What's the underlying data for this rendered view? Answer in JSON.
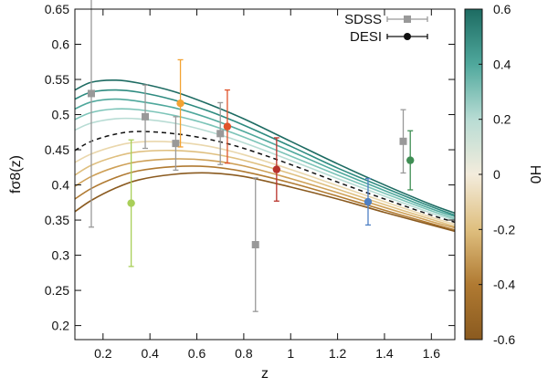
{
  "chart_data": {
    "type": "line",
    "xlabel": "z",
    "ylabel": "fσ8(z)",
    "xlim": [
      0.08,
      1.7
    ],
    "ylim": [
      0.18,
      0.65
    ],
    "xticks": [
      0.2,
      0.4,
      0.6,
      0.8,
      1,
      1.2,
      1.4,
      1.6
    ],
    "xtick_labels": [
      "0.2",
      "0.4",
      "0.6",
      "0.8",
      "1",
      "1.2",
      "1.4",
      "1.6"
    ],
    "yticks": [
      0.2,
      0.25,
      0.3,
      0.35,
      0.4,
      0.45,
      0.5,
      0.55,
      0.6,
      0.65
    ],
    "ytick_labels": [
      "0.2",
      "0.25",
      "0.3",
      "0.35",
      "0.4",
      "0.45",
      "0.5",
      "0.55",
      "0.6",
      "0.65"
    ],
    "grid": false,
    "legend_position": "top-right",
    "curves": [
      {
        "h0": 0.6,
        "color": "#1d6b62",
        "x": [
          0.08,
          0.15,
          0.25,
          0.35,
          0.5,
          0.65,
          0.8,
          1.0,
          1.2,
          1.4,
          1.6,
          1.7
        ],
        "y": [
          0.535,
          0.546,
          0.549,
          0.545,
          0.533,
          0.515,
          0.494,
          0.462,
          0.43,
          0.4,
          0.372,
          0.36
        ]
      },
      {
        "h0": 0.45,
        "color": "#2e8b80",
        "x": [
          0.08,
          0.15,
          0.25,
          0.35,
          0.5,
          0.65,
          0.8,
          1.0,
          1.2,
          1.4,
          1.6,
          1.7
        ],
        "y": [
          0.522,
          0.532,
          0.535,
          0.532,
          0.521,
          0.505,
          0.485,
          0.455,
          0.424,
          0.396,
          0.369,
          0.357
        ]
      },
      {
        "h0": 0.3,
        "color": "#4fa89c",
        "x": [
          0.08,
          0.15,
          0.25,
          0.35,
          0.5,
          0.65,
          0.8,
          1.0,
          1.2,
          1.4,
          1.6,
          1.7
        ],
        "y": [
          0.508,
          0.518,
          0.522,
          0.519,
          0.51,
          0.495,
          0.476,
          0.448,
          0.419,
          0.392,
          0.366,
          0.355
        ]
      },
      {
        "h0": 0.15,
        "color": "#7cc4b8",
        "x": [
          0.08,
          0.15,
          0.25,
          0.35,
          0.5,
          0.65,
          0.8,
          1.0,
          1.2,
          1.4,
          1.6,
          1.7
        ],
        "y": [
          0.493,
          0.503,
          0.508,
          0.507,
          0.499,
          0.486,
          0.468,
          0.441,
          0.414,
          0.388,
          0.363,
          0.352
        ]
      },
      {
        "h0": 0.05,
        "color": "#b8dcd4",
        "x": [
          0.08,
          0.15,
          0.25,
          0.35,
          0.5,
          0.65,
          0.8,
          1.0,
          1.2,
          1.4,
          1.6,
          1.7
        ],
        "y": [
          0.478,
          0.488,
          0.494,
          0.494,
          0.488,
          0.476,
          0.46,
          0.435,
          0.409,
          0.384,
          0.36,
          0.35
        ]
      },
      {
        "h0": 0.0,
        "color": "#111111",
        "dashed": true,
        "x": [
          0.08,
          0.15,
          0.25,
          0.35,
          0.5,
          0.65,
          0.8,
          1.0,
          1.2,
          1.4,
          1.6,
          1.7
        ],
        "y": [
          0.449,
          0.462,
          0.472,
          0.476,
          0.473,
          0.465,
          0.452,
          0.429,
          0.404,
          0.38,
          0.357,
          0.347
        ]
      },
      {
        "h0": -0.1,
        "color": "#ead7ac",
        "x": [
          0.08,
          0.15,
          0.25,
          0.35,
          0.5,
          0.65,
          0.8,
          1.0,
          1.2,
          1.4,
          1.6,
          1.7
        ],
        "y": [
          0.432,
          0.444,
          0.455,
          0.461,
          0.461,
          0.455,
          0.443,
          0.422,
          0.399,
          0.376,
          0.354,
          0.344
        ]
      },
      {
        "h0": -0.2,
        "color": "#dfbf7f",
        "x": [
          0.08,
          0.15,
          0.25,
          0.35,
          0.5,
          0.65,
          0.8,
          1.0,
          1.2,
          1.4,
          1.6,
          1.7
        ],
        "y": [
          0.414,
          0.428,
          0.44,
          0.447,
          0.449,
          0.445,
          0.435,
          0.416,
          0.394,
          0.372,
          0.351,
          0.341
        ]
      },
      {
        "h0": -0.3,
        "color": "#cea057",
        "x": [
          0.08,
          0.15,
          0.25,
          0.35,
          0.5,
          0.65,
          0.8,
          1.0,
          1.2,
          1.4,
          1.6,
          1.7
        ],
        "y": [
          0.398,
          0.412,
          0.425,
          0.433,
          0.437,
          0.435,
          0.427,
          0.409,
          0.389,
          0.368,
          0.348,
          0.339
        ]
      },
      {
        "h0": -0.45,
        "color": "#b07a32",
        "x": [
          0.08,
          0.15,
          0.25,
          0.35,
          0.5,
          0.65,
          0.8,
          1.0,
          1.2,
          1.4,
          1.6,
          1.7
        ],
        "y": [
          0.38,
          0.395,
          0.41,
          0.42,
          0.426,
          0.426,
          0.419,
          0.403,
          0.384,
          0.364,
          0.345,
          0.336
        ]
      },
      {
        "h0": -0.6,
        "color": "#8a5a1f",
        "x": [
          0.08,
          0.15,
          0.25,
          0.35,
          0.5,
          0.65,
          0.8,
          1.0,
          1.2,
          1.4,
          1.6,
          1.7
        ],
        "y": [
          0.362,
          0.378,
          0.395,
          0.407,
          0.415,
          0.417,
          0.412,
          0.397,
          0.38,
          0.361,
          0.343,
          0.334
        ]
      }
    ],
    "series": [
      {
        "name": "SDSS",
        "marker": "square",
        "color": "#999999",
        "points": [
          {
            "x": 0.15,
            "y": 0.53,
            "err": 0.19
          },
          {
            "x": 0.38,
            "y": 0.497,
            "err": 0.045
          },
          {
            "x": 0.51,
            "y": 0.459,
            "err": 0.038
          },
          {
            "x": 0.7,
            "y": 0.473,
            "err": 0.044
          },
          {
            "x": 0.85,
            "y": 0.315,
            "err": 0.095
          },
          {
            "x": 1.48,
            "y": 0.462,
            "err": 0.045
          }
        ]
      },
      {
        "name": "DESI",
        "marker": "circle",
        "color": "#111111",
        "points": [
          {
            "x": 0.32,
            "y": 0.374,
            "err": 0.09,
            "color": "#a9cf59"
          },
          {
            "x": 0.53,
            "y": 0.516,
            "err": 0.062,
            "color": "#f3a333"
          },
          {
            "x": 0.73,
            "y": 0.483,
            "err": 0.052,
            "color": "#e0532b"
          },
          {
            "x": 0.94,
            "y": 0.422,
            "err": 0.045,
            "color": "#b8332b"
          },
          {
            "x": 1.33,
            "y": 0.376,
            "err": 0.033,
            "color": "#4f80c4"
          },
          {
            "x": 1.51,
            "y": 0.435,
            "err": 0.042,
            "color": "#3f8e54"
          }
        ]
      }
    ],
    "colorbar": {
      "label": "H0",
      "min": -0.6,
      "max": 0.6,
      "ticks": [
        -0.6,
        -0.4,
        -0.2,
        0,
        0.2,
        0.4,
        0.6
      ],
      "tick_labels": [
        "-0.6",
        "-0.4",
        "-0.2",
        "0",
        "0.2",
        "0.4",
        "0.6"
      ],
      "colors": [
        "#8a5a1f",
        "#b07a32",
        "#dfbf7f",
        "#f3ecdc",
        "#b8dcd4",
        "#4fa89c",
        "#1d6b62"
      ]
    }
  }
}
